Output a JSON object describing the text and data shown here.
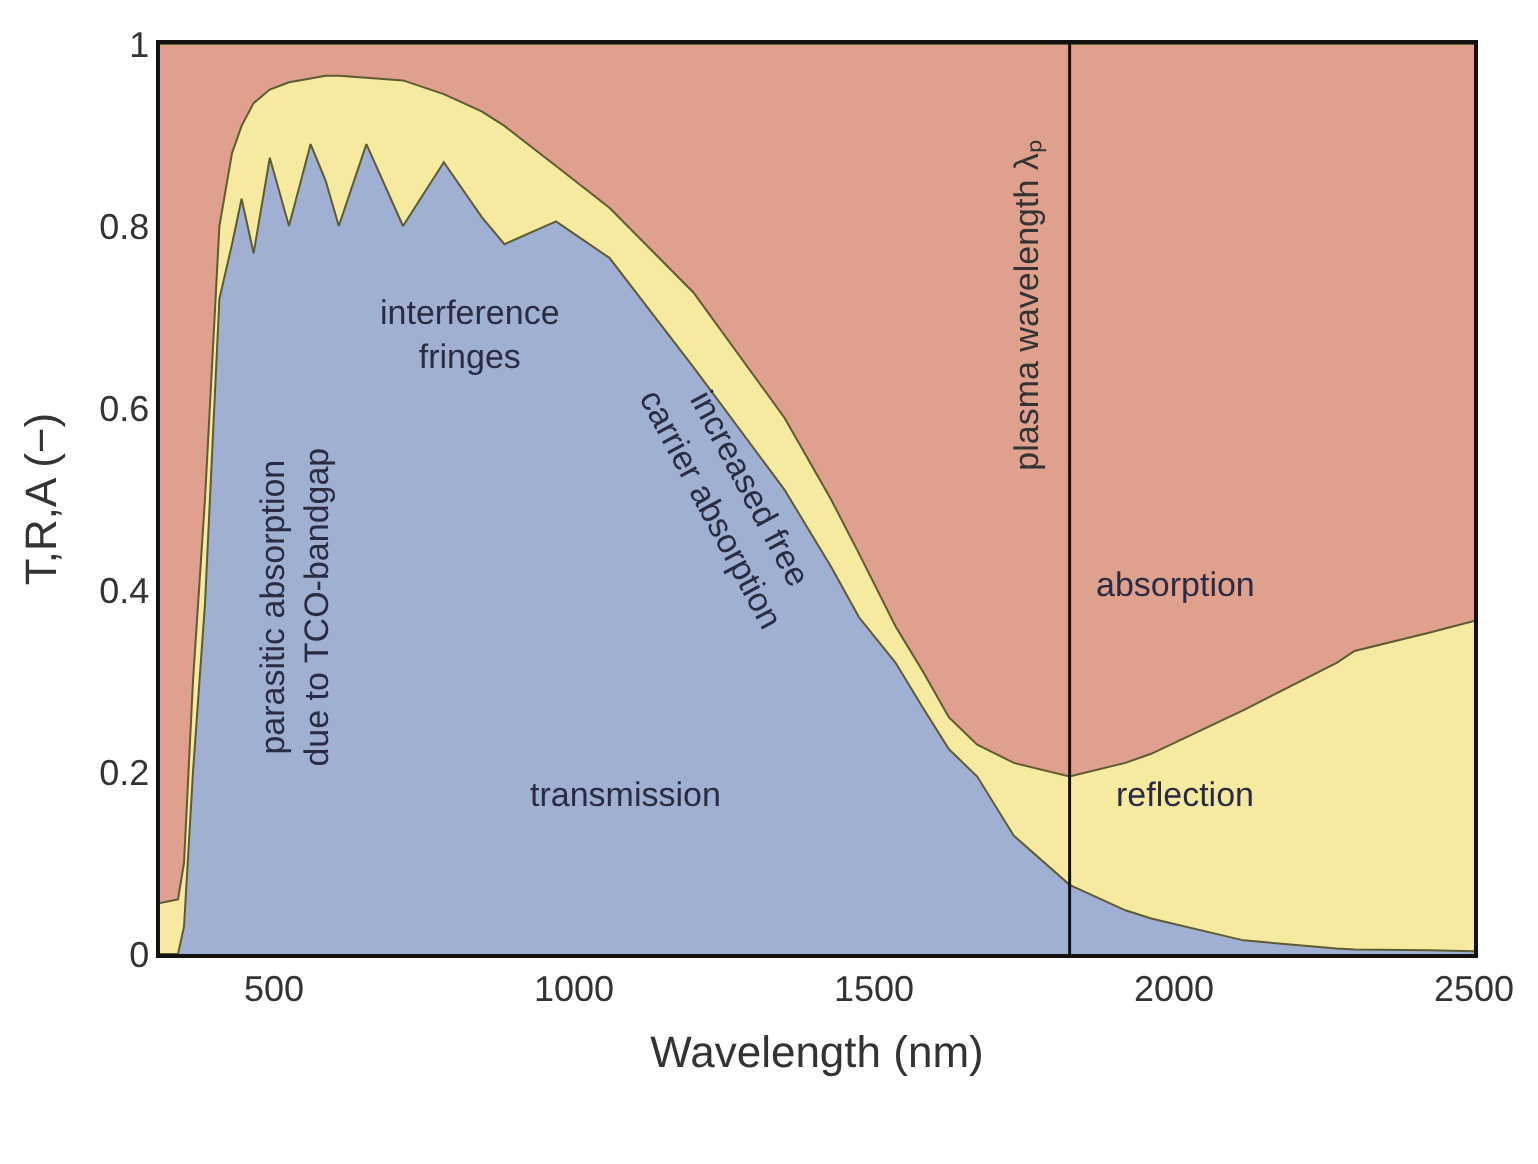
{
  "chart_data": {
    "type": "area",
    "stacked": true,
    "xlabel": "Wavelength (nm)",
    "ylabel": "T,R,A (−)",
    "x": [
      310,
      340,
      350,
      365,
      385,
      409,
      430,
      446,
      466,
      493,
      525,
      561,
      586,
      608,
      654,
      715,
      783,
      846,
      884,
      970,
      1059,
      1199,
      1351,
      1428,
      1475,
      1536,
      1582,
      1625,
      1672,
      1733,
      1826,
      1919,
      1962,
      2116,
      2271,
      2301,
      2425,
      2500
    ],
    "series": [
      {
        "name": "transmission",
        "color": "#9fb0d3",
        "values": [
          0,
          0,
          0.03,
          0.2,
          0.385,
          0.72,
          0.78,
          0.83,
          0.77,
          0.875,
          0.8,
          0.89,
          0.85,
          0.8,
          0.89,
          0.8,
          0.87,
          0.81,
          0.78,
          0.805,
          0.765,
          0.645,
          0.51,
          0.426,
          0.37,
          0.32,
          0.27,
          0.225,
          0.195,
          0.13,
          0.076,
          0.048,
          0.039,
          0.015,
          0.006,
          0.005,
          0.004,
          0.003
        ]
      },
      {
        "name": "reflection",
        "color": "#f5eaa0",
        "values": [
          0.056,
          0.06,
          0.07,
          0.1,
          0.115,
          0.08,
          0.1,
          0.08,
          0.165,
          0.075,
          0.158,
          0.072,
          0.115,
          0.165,
          0.073,
          0.16,
          0.075,
          0.116,
          0.13,
          0.061,
          0.055,
          0.082,
          0.079,
          0.074,
          0.07,
          0.04,
          0.04,
          0.035,
          0.035,
          0.08,
          0.119,
          0.162,
          0.181,
          0.253,
          0.314,
          0.328,
          0.349,
          0.363
        ]
      },
      {
        "name": "absorption",
        "color": "#dfa08e",
        "values": [
          0.944,
          0.94,
          0.9,
          0.7,
          0.5,
          0.2,
          0.12,
          0.09,
          0.065,
          0.05,
          0.042,
          0.038,
          0.035,
          0.035,
          0.037,
          0.04,
          0.055,
          0.074,
          0.09,
          0.134,
          0.18,
          0.273,
          0.411,
          0.5,
          0.56,
          0.64,
          0.69,
          0.74,
          0.77,
          0.79,
          0.805,
          0.79,
          0.78,
          0.732,
          0.68,
          0.667,
          0.647,
          0.634
        ]
      }
    ],
    "xlim": [
      310,
      2500
    ],
    "ylim": [
      0,
      1
    ],
    "xticks": [
      500,
      1000,
      1500,
      2000,
      2500
    ],
    "yticks": [
      0,
      0.2,
      0.4,
      0.6,
      0.8,
      1
    ],
    "ref_lines": [
      {
        "axis": "x",
        "value": 1826,
        "label": "plasma wavelength λₚ"
      }
    ],
    "annotations": [
      "interference\nfringes",
      "parasitic absorption\ndue to TCO-bandgap",
      "increased free\ncarrier absorption"
    ],
    "legend": false
  }
}
